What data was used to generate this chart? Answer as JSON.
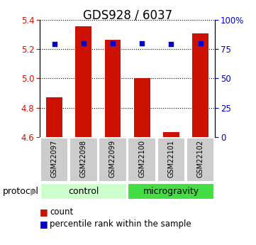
{
  "title": "GDS928 / 6037",
  "samples": [
    "GSM22097",
    "GSM22098",
    "GSM22099",
    "GSM22100",
    "GSM22101",
    "GSM22102"
  ],
  "count_values": [
    4.87,
    5.355,
    5.265,
    5.0,
    4.635,
    5.305
  ],
  "percentile_values": [
    79,
    80,
    80,
    80,
    79,
    80
  ],
  "count_base": 4.6,
  "ylim_left": [
    4.6,
    5.4
  ],
  "ylim_right": [
    0,
    100
  ],
  "yticks_left": [
    4.6,
    4.8,
    5.0,
    5.2,
    5.4
  ],
  "yticks_right": [
    0,
    25,
    50,
    75,
    100
  ],
  "ytick_labels_right": [
    "0",
    "25",
    "50",
    "75",
    "100%"
  ],
  "bar_color": "#cc1100",
  "dot_color": "#0000cc",
  "groups": [
    {
      "label": "control",
      "indices": [
        0,
        1,
        2
      ],
      "color": "#ccffcc"
    },
    {
      "label": "microgravity",
      "indices": [
        3,
        4,
        5
      ],
      "color": "#44dd44"
    }
  ],
  "protocol_label": "protocol",
  "legend_count_label": "count",
  "legend_pct_label": "percentile rank within the sample",
  "bar_width": 0.55,
  "sample_box_color": "#cccccc",
  "title_fontsize": 12,
  "tick_fontsize": 8.5,
  "label_fontsize": 9
}
